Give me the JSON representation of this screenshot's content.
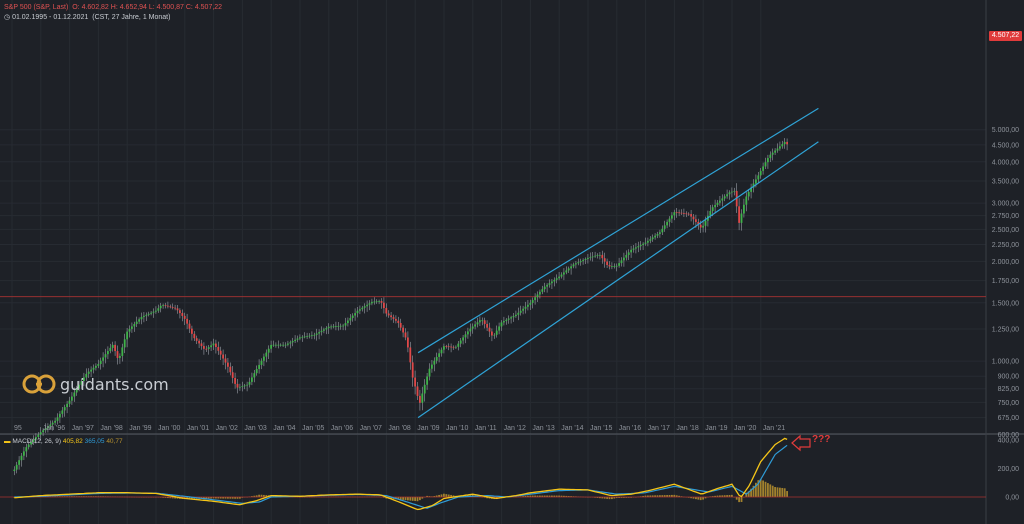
{
  "header": {
    "instrument": "S&P 500 (S&P, Last)",
    "ohlc": "O: 4.602,82  H: 4.652,94  L: 4.500,87  C: 4.507,22",
    "range": "01.02.1995 - 01.12.2021",
    "range_detail": "(CST, 27 Jahre, 1 Monat)"
  },
  "logo": {
    "text": "guidants.com"
  },
  "price_tag": "4.507,22",
  "macd_legend": {
    "label": "MACD(12, 26, 9)",
    "macd": "405,82",
    "signal": "365,05",
    "hist": "40,77"
  },
  "annotation": "???",
  "colors": {
    "up": "#3fb24a",
    "down": "#e04848",
    "channel": "#2fa3d6",
    "macd": "#f5c518",
    "signal": "#2f9bd6",
    "hist": "#b8922f",
    "background": "#1e2127"
  },
  "chart_data": [
    {
      "type": "candlestick",
      "scale": "log",
      "y_ticks": [
        "5.000,00",
        "4.500,00",
        "4.000,00",
        "3.500,00",
        "3.000,00",
        "2.750,00",
        "2.500,00",
        "2.250,00",
        "2.000,00",
        "1.750,00",
        "1.500,00",
        "1.250,00",
        "1.000,00",
        "900,00",
        "825,00",
        "750,00",
        "675,00",
        "600,00"
      ],
      "y_tick_values": [
        5000,
        4500,
        4000,
        3500,
        3000,
        2750,
        2500,
        2250,
        2000,
        1750,
        1500,
        1250,
        1000,
        900,
        825,
        750,
        675,
        600
      ],
      "x_ticks": [
        "95",
        "Jan '96",
        "Jan '97",
        "Jan '98",
        "Jan '99",
        "Jan '00",
        "Jan '01",
        "Jan '02",
        "Jan '03",
        "Jan '04",
        "Jan '05",
        "Jan '06",
        "Jan '07",
        "Jan '08",
        "Jan '09",
        "Jan '10",
        "Jan '11",
        "Jan '12",
        "Jan '13",
        "Jan '14",
        "Jan '15",
        "Jan '16",
        "Jan '17",
        "Jan '18",
        "Jan '19",
        "Jan '20",
        "Jan '21"
      ],
      "x_tick_years": [
        1995,
        1996,
        1997,
        1998,
        1999,
        2000,
        2001,
        2002,
        2003,
        2004,
        2005,
        2006,
        2007,
        2008,
        2009,
        2010,
        2011,
        2012,
        2013,
        2014,
        2015,
        2016,
        2017,
        2018,
        2019,
        2020,
        2021
      ],
      "reference_line": 1565,
      "anchors": [
        [
          1995.08,
          470
        ],
        [
          1995.5,
          550
        ],
        [
          1996.0,
          610
        ],
        [
          1996.5,
          660
        ],
        [
          1997.0,
          760
        ],
        [
          1997.6,
          920
        ],
        [
          1998.0,
          980
        ],
        [
          1998.5,
          1120
        ],
        [
          1998.7,
          1000
        ],
        [
          1999.0,
          1230
        ],
        [
          1999.5,
          1360
        ],
        [
          2000.0,
          1420
        ],
        [
          2000.2,
          1480
        ],
        [
          2000.7,
          1440
        ],
        [
          2001.0,
          1340
        ],
        [
          2001.3,
          1180
        ],
        [
          2001.7,
          1080
        ],
        [
          2002.0,
          1130
        ],
        [
          2002.5,
          960
        ],
        [
          2002.8,
          830
        ],
        [
          2003.2,
          850
        ],
        [
          2003.6,
          980
        ],
        [
          2004.0,
          1120
        ],
        [
          2004.5,
          1120
        ],
        [
          2005.0,
          1180
        ],
        [
          2005.5,
          1200
        ],
        [
          2006.0,
          1270
        ],
        [
          2006.5,
          1280
        ],
        [
          2007.0,
          1420
        ],
        [
          2007.5,
          1510
        ],
        [
          2007.8,
          1520
        ],
        [
          2008.0,
          1390
        ],
        [
          2008.4,
          1310
        ],
        [
          2008.7,
          1160
        ],
        [
          2008.9,
          900
        ],
        [
          2009.15,
          740
        ],
        [
          2009.5,
          950
        ],
        [
          2010.0,
          1110
        ],
        [
          2010.4,
          1100
        ],
        [
          2010.9,
          1250
        ],
        [
          2011.3,
          1340
        ],
        [
          2011.7,
          1180
        ],
        [
          2012.0,
          1310
        ],
        [
          2012.5,
          1380
        ],
        [
          2013.0,
          1500
        ],
        [
          2013.5,
          1680
        ],
        [
          2014.0,
          1800
        ],
        [
          2014.5,
          1960
        ],
        [
          2015.0,
          2050
        ],
        [
          2015.4,
          2100
        ],
        [
          2015.7,
          1930
        ],
        [
          2016.0,
          1940
        ],
        [
          2016.5,
          2170
        ],
        [
          2017.0,
          2280
        ],
        [
          2017.5,
          2450
        ],
        [
          2018.0,
          2820
        ],
        [
          2018.5,
          2780
        ],
        [
          2018.95,
          2510
        ],
        [
          2019.3,
          2900
        ],
        [
          2019.9,
          3230
        ],
        [
          2020.1,
          3270
        ],
        [
          2020.23,
          2580
        ],
        [
          2020.5,
          3150
        ],
        [
          2020.9,
          3620
        ],
        [
          2021.3,
          4180
        ],
        [
          2021.6,
          4400
        ],
        [
          2021.85,
          4610
        ],
        [
          2021.92,
          4507
        ]
      ],
      "channel_lines": [
        {
          "from": [
            2009.1,
            1060
          ],
          "to": [
            2023.0,
            5800
          ]
        },
        {
          "from": [
            2009.1,
            675
          ],
          "to": [
            2023.0,
            4600
          ]
        }
      ]
    },
    {
      "type": "bar+line",
      "name": "MACD(12, 26, 9)",
      "y_ticks": [
        "400,00",
        "200,00",
        "0,00"
      ],
      "y_tick_values": [
        400,
        200,
        0
      ],
      "macd_anchors": [
        [
          1995.1,
          -5
        ],
        [
          1996,
          10
        ],
        [
          1997,
          20
        ],
        [
          1998,
          30
        ],
        [
          1999,
          30
        ],
        [
          2000,
          25
        ],
        [
          2001,
          -10
        ],
        [
          2002,
          -30
        ],
        [
          2002.9,
          -55
        ],
        [
          2003.5,
          -25
        ],
        [
          2004,
          10
        ],
        [
          2005,
          5
        ],
        [
          2006,
          15
        ],
        [
          2007,
          20
        ],
        [
          2007.8,
          15
        ],
        [
          2008.5,
          -40
        ],
        [
          2009.1,
          -90
        ],
        [
          2009.6,
          -60
        ],
        [
          2010,
          -10
        ],
        [
          2011,
          20
        ],
        [
          2011.8,
          -10
        ],
        [
          2012.5,
          10
        ],
        [
          2013,
          30
        ],
        [
          2014,
          55
        ],
        [
          2015,
          50
        ],
        [
          2015.8,
          10
        ],
        [
          2016.5,
          20
        ],
        [
          2017,
          40
        ],
        [
          2018,
          90
        ],
        [
          2018.95,
          20
        ],
        [
          2019.5,
          60
        ],
        [
          2020,
          90
        ],
        [
          2020.3,
          -5
        ],
        [
          2020.6,
          80
        ],
        [
          2021,
          250
        ],
        [
          2021.5,
          370
        ],
        [
          2021.85,
          415
        ],
        [
          2021.92,
          405
        ]
      ],
      "signal_anchors": [
        [
          1995.1,
          0
        ],
        [
          1996,
          5
        ],
        [
          1997,
          15
        ],
        [
          1998,
          25
        ],
        [
          1999,
          28
        ],
        [
          2000,
          27
        ],
        [
          2001,
          5
        ],
        [
          2002,
          -20
        ],
        [
          2003,
          -45
        ],
        [
          2003.6,
          -35
        ],
        [
          2004,
          0
        ],
        [
          2005,
          5
        ],
        [
          2006,
          12
        ],
        [
          2007,
          18
        ],
        [
          2008,
          10
        ],
        [
          2008.8,
          -40
        ],
        [
          2009.4,
          -80
        ],
        [
          2009.9,
          -40
        ],
        [
          2010.5,
          0
        ],
        [
          2011.5,
          10
        ],
        [
          2012.2,
          0
        ],
        [
          2013,
          20
        ],
        [
          2014,
          45
        ],
        [
          2015,
          50
        ],
        [
          2016,
          20
        ],
        [
          2017,
          30
        ],
        [
          2018,
          75
        ],
        [
          2019.2,
          35
        ],
        [
          2020,
          75
        ],
        [
          2020.5,
          20
        ],
        [
          2020.9,
          90
        ],
        [
          2021.5,
          300
        ],
        [
          2021.92,
          365
        ]
      ]
    }
  ]
}
